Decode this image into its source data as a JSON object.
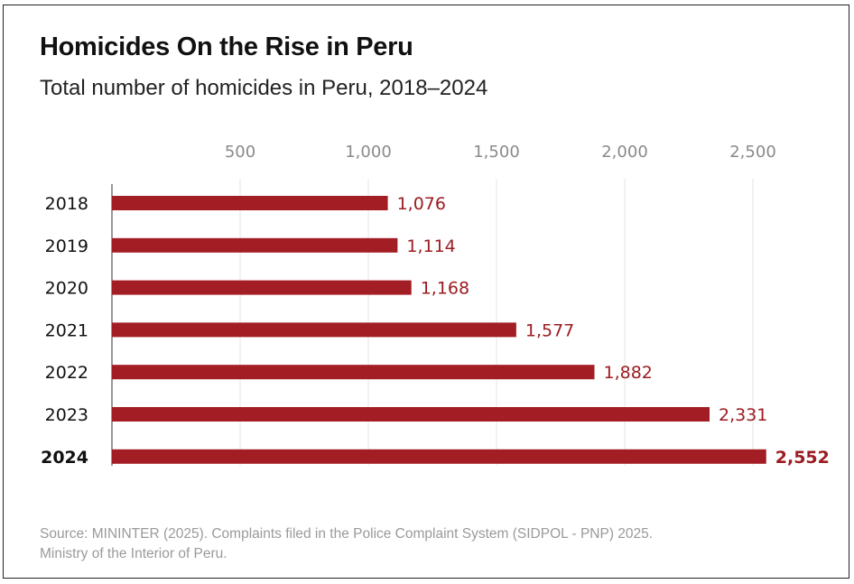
{
  "chart_data": {
    "type": "bar",
    "orientation": "horizontal",
    "title": "Homicides On the Rise in Peru",
    "subtitle": "Total number of homicides in Peru, 2018–2024",
    "categories": [
      "2018",
      "2019",
      "2020",
      "2021",
      "2022",
      "2023",
      "2024"
    ],
    "values": [
      1076,
      1114,
      1168,
      1577,
      1882,
      2331,
      2552
    ],
    "value_labels": [
      "1,076",
      "1,114",
      "1,168",
      "1,577",
      "1,882",
      "2,331",
      "2,552"
    ],
    "highlight_category": "2024",
    "xticks": [
      500,
      1000,
      1500,
      2000,
      2500
    ],
    "xtick_labels": [
      "500",
      "1,000",
      "1,500",
      "2,000",
      "2,500"
    ],
    "xlim": [
      0,
      2600
    ],
    "tick_position": "top",
    "grid": true,
    "bar_color": "#a31d24",
    "source": "Source: MININTER (2025). Complaints filed in the Police Complaint System (SIDPOL - PNP) 2025.",
    "source_line2": "Ministry of the Interior of Peru."
  }
}
